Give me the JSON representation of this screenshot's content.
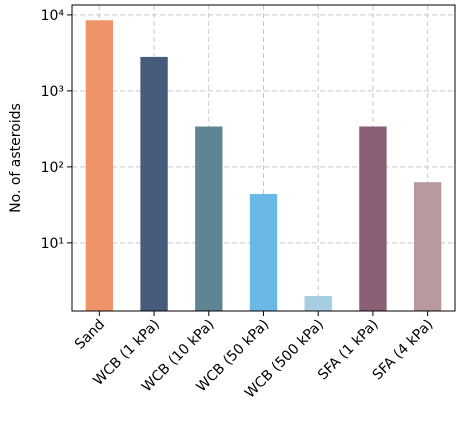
{
  "chart_data": {
    "type": "bar",
    "ylabel": "No. of asteroids",
    "categories": [
      "Sand",
      "WCB (1 kPa)",
      "WCB (10 kPa)",
      "WCB (50 kPa)",
      "WCB (500 kPa)",
      "SFA (1 kPa)",
      "SFA (4 kPa)"
    ],
    "values": [
      8500,
      2800,
      340,
      44,
      2,
      340,
      63
    ],
    "colors": [
      "#ef9468",
      "#475c7d",
      "#5e8591",
      "#6bb8e6",
      "#a6cde0",
      "#8a5f75",
      "#b89a9e"
    ],
    "ylim": [
      1.27,
      13500
    ],
    "log_y": true,
    "yticks": [
      {
        "value": 10,
        "label": "10¹"
      },
      {
        "value": 100,
        "label": "10²"
      },
      {
        "value": 1000,
        "label": "10³"
      },
      {
        "value": 10000,
        "label": "10⁴"
      }
    ],
    "grid": true
  }
}
